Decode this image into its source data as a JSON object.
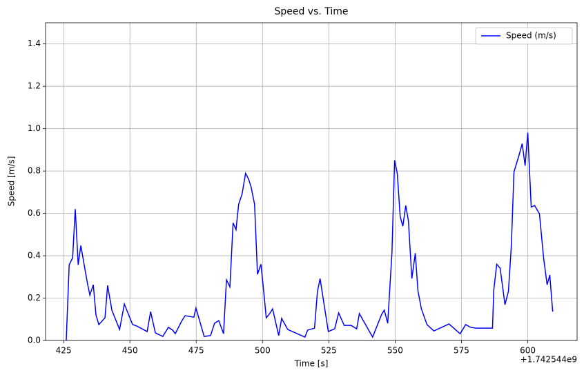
{
  "chart_data": {
    "type": "line",
    "title": "Speed vs. Time",
    "x_label": "Time [s]",
    "y_label": "Speed [m/s]",
    "x_offset_label": "+1.742544e9",
    "x": [
      426.0,
      427.1,
      428.4,
      429.4,
      430.5,
      431.5,
      432.8,
      433.8,
      434.9,
      436.2,
      437.2,
      438.3,
      440.6,
      441.6,
      443.2,
      446.1,
      447.9,
      451.0,
      452.6,
      456.5,
      457.8,
      459.6,
      462.4,
      464.5,
      466.1,
      467.1,
      469.5,
      470.8,
      474.1,
      474.9,
      478.0,
      480.4,
      481.9,
      483.5,
      485.3,
      486.4,
      487.7,
      488.9,
      490.0,
      491.0,
      492.3,
      493.6,
      494.7,
      495.7,
      497.0,
      498.1,
      499.4,
      500.4,
      501.4,
      502.7,
      503.8,
      506.1,
      507.2,
      509.5,
      516.0,
      517.0,
      519.6,
      520.7,
      521.7,
      524.8,
      527.2,
      528.7,
      530.8,
      533.4,
      535.5,
      536.5,
      541.5,
      544.9,
      545.9,
      547.2,
      548.8,
      549.8,
      550.8,
      551.9,
      552.9,
      554.0,
      555.0,
      556.3,
      557.6,
      558.6,
      559.9,
      562.0,
      564.6,
      570.3,
      574.5,
      576.6,
      578.4,
      580.5,
      586.7,
      587.2,
      588.3,
      589.6,
      591.4,
      592.7,
      593.8,
      594.8,
      596.6,
      597.9,
      599.0,
      600.0,
      601.3,
      602.6,
      604.4,
      606.0,
      607.3,
      608.3,
      609.4
    ],
    "series": [
      {
        "name": "Speed (m/s)",
        "color": "#0000ff",
        "values": [
          0,
          0.357,
          0.39,
          0.62,
          0.357,
          0.448,
          0.354,
          0.283,
          0.214,
          0.263,
          0.12,
          0.075,
          0.107,
          0.26,
          0.143,
          0.052,
          0.172,
          0.075,
          0.068,
          0.042,
          0.136,
          0.036,
          0.019,
          0.062,
          0.049,
          0.032,
          0.091,
          0.117,
          0.11,
          0.153,
          0.019,
          0.023,
          0.081,
          0.094,
          0.032,
          0.286,
          0.253,
          0.555,
          0.523,
          0.643,
          0.692,
          0.789,
          0.763,
          0.724,
          0.643,
          0.312,
          0.36,
          0.237,
          0.107,
          0.127,
          0.149,
          0.023,
          0.104,
          0.052,
          0.016,
          0.049,
          0.058,
          0.231,
          0.292,
          0.042,
          0.055,
          0.13,
          0.071,
          0.071,
          0.055,
          0.127,
          0.016,
          0.123,
          0.143,
          0.081,
          0.416,
          0.851,
          0.789,
          0.585,
          0.539,
          0.637,
          0.565,
          0.292,
          0.412,
          0.234,
          0.149,
          0.075,
          0.045,
          0.078,
          0.032,
          0.075,
          0.062,
          0.058,
          0.058,
          0.24,
          0.36,
          0.341,
          0.169,
          0.231,
          0.445,
          0.796,
          0.87,
          0.929,
          0.825,
          0.981,
          0.63,
          0.637,
          0.598,
          0.386,
          0.263,
          0.309,
          0.136
        ]
      }
    ],
    "xlim": [
      418.2,
      618.6
    ],
    "ylim": [
      0,
      1.5
    ],
    "xticks": [
      425,
      450,
      475,
      500,
      525,
      550,
      575,
      600
    ],
    "yticks": [
      {
        "value": 0,
        "label": "0.0"
      },
      0.2,
      0.4,
      0.6,
      0.8,
      {
        "value": 1,
        "label": "1.0"
      },
      1.2,
      1.4
    ],
    "grid": true,
    "legend": "upper right"
  }
}
